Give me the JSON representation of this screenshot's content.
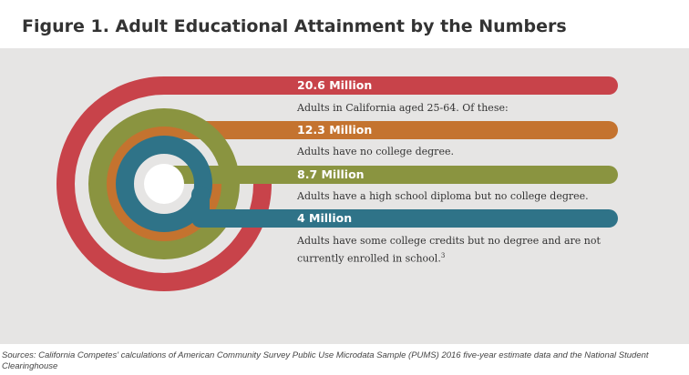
{
  "title": "Figure 1. Adult Educational Attainment by the Numbers",
  "items": [
    {
      "label": "20.6 Million",
      "description": "Adults in California aged 25-64. Of these:",
      "color": "#c8434a"
    },
    {
      "label": "12.3 Million",
      "description": "Adults have no college degree.",
      "color": "#c4732f"
    },
    {
      "label": "8.7 Million",
      "description": "Adults have a high school diploma but no college degree.",
      "color": "#8a9440"
    },
    {
      "label": "4 Million",
      "description": "Adults have some college credits but no degree and are not currently enrolled in school.",
      "description_sup": "3",
      "color": "#2f7388"
    }
  ],
  "source": "Sources: California Competes' calculations of American Community Survey Public Use Microdata Sample (PUMS) 2016 five-year estimate data and the National Student Clearinghouse"
}
